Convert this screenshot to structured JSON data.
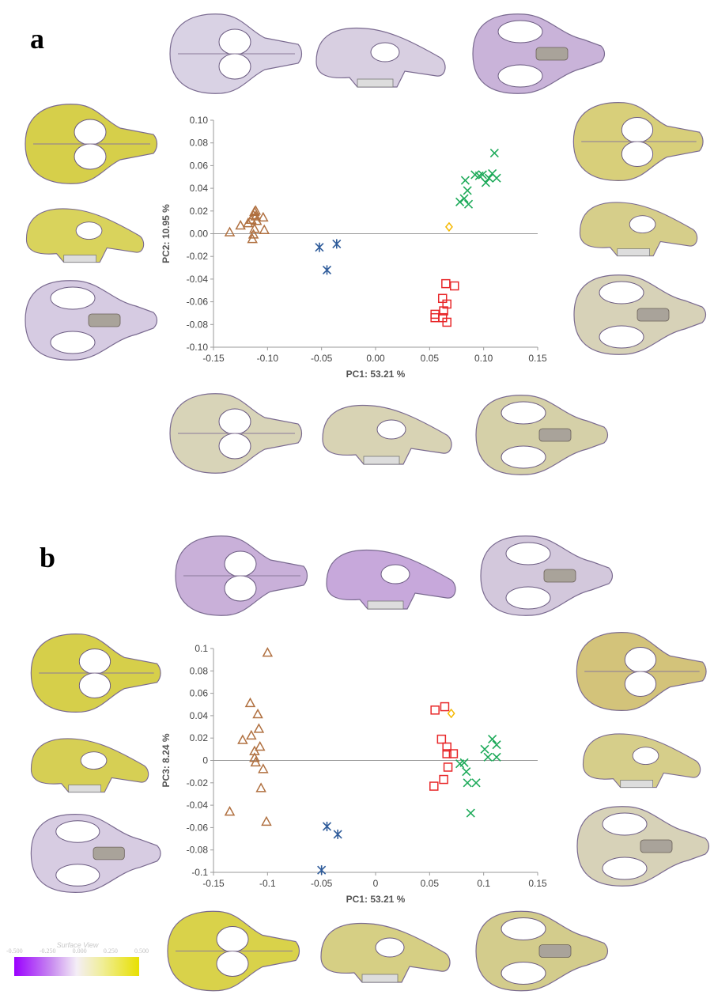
{
  "panels": [
    {
      "letter": "a",
      "chart_data": {
        "type": "scatter",
        "xlabel": "PC1: 53.21 %",
        "ylabel": "PC2: 10.95 %",
        "xlim": [
          -0.15,
          0.15
        ],
        "ylim": [
          -0.1,
          0.1
        ],
        "x_ticks": [
          "-0.15",
          "-0.10",
          "-0.05",
          "0.00",
          "0.05",
          "0.10",
          "0.15"
        ],
        "y_ticks": [
          "0.10",
          "0.08",
          "0.06",
          "0.04",
          "0.02",
          "0.00",
          "-0.02",
          "-0.04",
          "-0.06",
          "-0.08",
          "-0.10"
        ],
        "grid": false,
        "series": [
          {
            "marker": "triangle",
            "color": "#b07040",
            "points": [
              [
                -0.135,
                0.001
              ],
              [
                -0.125,
                0.007
              ],
              [
                -0.118,
                0.009
              ],
              [
                -0.115,
                0.012
              ],
              [
                -0.113,
                0.016
              ],
              [
                -0.112,
                0.019
              ],
              [
                -0.111,
                0.015
              ],
              [
                -0.11,
                0.011
              ],
              [
                -0.112,
                0.004
              ],
              [
                -0.113,
                -0.001
              ],
              [
                -0.114,
                -0.005
              ],
              [
                -0.104,
                0.014
              ],
              [
                -0.103,
                0.003
              ],
              [
                -0.111,
                0.02
              ]
            ]
          },
          {
            "marker": "asterisk",
            "color": "#2e5b9a",
            "points": [
              [
                -0.052,
                -0.012
              ],
              [
                -0.045,
                -0.032
              ],
              [
                -0.036,
                -0.009
              ]
            ]
          },
          {
            "marker": "square",
            "color": "#e8282a",
            "points": [
              [
                0.055,
                -0.074
              ],
              [
                0.055,
                -0.071
              ],
              [
                0.062,
                -0.074
              ],
              [
                0.062,
                -0.057
              ],
              [
                0.063,
                -0.068
              ],
              [
                0.065,
                -0.044
              ],
              [
                0.066,
                -0.062
              ],
              [
                0.066,
                -0.078
              ],
              [
                0.073,
                -0.046
              ]
            ]
          },
          {
            "marker": "diamond",
            "color": "#f5b800",
            "points": [
              [
                0.068,
                0.006
              ]
            ]
          },
          {
            "marker": "x",
            "color": "#1eaa5a",
            "points": [
              [
                0.078,
                0.028
              ],
              [
                0.082,
                0.031
              ],
              [
                0.085,
                0.038
              ],
              [
                0.086,
                0.026
              ],
              [
                0.083,
                0.047
              ],
              [
                0.092,
                0.052
              ],
              [
                0.096,
                0.051
              ],
              [
                0.099,
                0.052
              ],
              [
                0.102,
                0.045
              ],
              [
                0.105,
                0.049
              ],
              [
                0.108,
                0.053
              ],
              [
                0.11,
                0.071
              ],
              [
                0.112,
                0.049
              ]
            ]
          }
        ]
      }
    },
    {
      "letter": "b",
      "chart_data": {
        "type": "scatter",
        "xlabel": "PC1: 53.21 %",
        "ylabel": "PC3: 8.24 %",
        "xlim": [
          -0.15,
          0.15
        ],
        "ylim": [
          -0.1,
          0.1
        ],
        "x_ticks": [
          "-0.15",
          "-0.1",
          "-0.05",
          "0",
          "0.05",
          "0.1",
          "0.15"
        ],
        "y_ticks": [
          "0.1",
          "0.08",
          "0.06",
          "0.04",
          "0.02",
          "0",
          "-0.02",
          "-0.04",
          "-0.06",
          "-0.08",
          "-0.1"
        ],
        "grid": false,
        "series": [
          {
            "marker": "triangle",
            "color": "#b07040",
            "points": [
              [
                -0.135,
                -0.046
              ],
              [
                -0.123,
                0.018
              ],
              [
                -0.116,
                0.051
              ],
              [
                -0.115,
                0.022
              ],
              [
                -0.112,
                0.008
              ],
              [
                -0.112,
                0.002
              ],
              [
                -0.111,
                -0.002
              ],
              [
                -0.109,
                0.041
              ],
              [
                -0.108,
                0.028
              ],
              [
                -0.107,
                0.012
              ],
              [
                -0.106,
                -0.025
              ],
              [
                -0.104,
                -0.008
              ],
              [
                -0.101,
                -0.055
              ],
              [
                -0.1,
                0.096
              ]
            ]
          },
          {
            "marker": "asterisk",
            "color": "#2e5b9a",
            "points": [
              [
                -0.05,
                -0.098
              ],
              [
                -0.045,
                -0.059
              ],
              [
                -0.035,
                -0.066
              ]
            ]
          },
          {
            "marker": "square",
            "color": "#e8282a",
            "points": [
              [
                0.054,
                -0.023
              ],
              [
                0.055,
                0.045
              ],
              [
                0.061,
                0.019
              ],
              [
                0.064,
                0.048
              ],
              [
                0.063,
                -0.017
              ],
              [
                0.066,
                0.012
              ],
              [
                0.066,
                0.006
              ],
              [
                0.067,
                -0.006
              ],
              [
                0.072,
                0.006
              ]
            ]
          },
          {
            "marker": "diamond",
            "color": "#f5b800",
            "points": [
              [
                0.07,
                0.042
              ]
            ]
          },
          {
            "marker": "x",
            "color": "#1eaa5a",
            "points": [
              [
                0.078,
                -0.003
              ],
              [
                0.082,
                -0.002
              ],
              [
                0.084,
                -0.01
              ],
              [
                0.085,
                -0.02
              ],
              [
                0.088,
                -0.047
              ],
              [
                0.093,
                -0.02
              ],
              [
                0.101,
                0.01
              ],
              [
                0.104,
                0.003
              ],
              [
                0.108,
                0.019
              ],
              [
                0.112,
                0.014
              ],
              [
                0.112,
                0.003
              ]
            ]
          }
        ]
      }
    }
  ],
  "colorbar": {
    "title": "Surface View",
    "ticks": [
      "-0.500",
      "-0.250",
      "0.000",
      "0.250",
      "0.500"
    ],
    "colors": [
      "#9b00ff",
      "#f4eef6",
      "#e8e000"
    ]
  }
}
